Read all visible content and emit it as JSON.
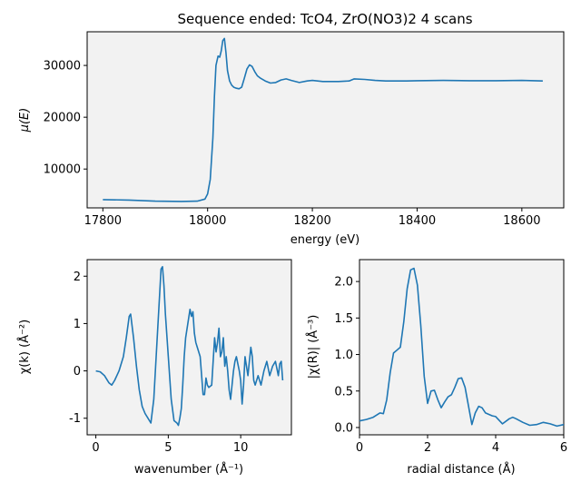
{
  "title": "Sequence ended: TcO4, ZrO(NO3)2  4 scans",
  "colors": {
    "series": "#1f77b4",
    "panel_bg": "#f2f2f2"
  },
  "chart_data": [
    {
      "id": "mu",
      "type": "line",
      "xlabel": "energy (eV)",
      "ylabel": "μ(E)",
      "xlim": [
        17770,
        18680
      ],
      "ylim": [
        2500,
        36500
      ],
      "xticks": [
        17800,
        18000,
        18200,
        18400,
        18600
      ],
      "yticks": [
        10000,
        20000,
        30000
      ],
      "grid": false,
      "series": [
        {
          "x": [
            17800,
            17850,
            17900,
            17950,
            17980,
            17995,
            18000,
            18005,
            18010,
            18013,
            18016,
            18020,
            18023,
            18026,
            18029,
            18032,
            18035,
            18038,
            18042,
            18046,
            18050,
            18055,
            18060,
            18065,
            18070,
            18075,
            18080,
            18085,
            18090,
            18095,
            18100,
            18110,
            18120,
            18130,
            18140,
            18150,
            18160,
            18175,
            18190,
            18200,
            18220,
            18250,
            18270,
            18280,
            18300,
            18320,
            18340,
            18360,
            18380,
            18400,
            18450,
            18500,
            18550,
            18600,
            18640
          ],
          "y": [
            4100,
            4000,
            3800,
            3750,
            3800,
            4200,
            5200,
            8000,
            16000,
            24000,
            30000,
            31800,
            31600,
            32800,
            34800,
            35200,
            32500,
            29000,
            27000,
            26200,
            25800,
            25600,
            25500,
            25800,
            27500,
            29300,
            30100,
            29800,
            28800,
            28000,
            27600,
            27000,
            26600,
            26700,
            27200,
            27400,
            27100,
            26700,
            27000,
            27100,
            26900,
            26900,
            27000,
            27400,
            27300,
            27100,
            27000,
            27000,
            27000,
            27050,
            27100,
            27050,
            27050,
            27100,
            27000
          ]
        }
      ]
    },
    {
      "id": "chik",
      "type": "line",
      "xlabel": "wavenumber (Å⁻¹)",
      "ylabel": "χ(k)  (Å⁻²)",
      "xlim": [
        -0.6,
        13.5
      ],
      "ylim": [
        -1.35,
        2.35
      ],
      "xticks": [
        0,
        5,
        10
      ],
      "yticks": [
        -1,
        0,
        1,
        2
      ],
      "grid": false,
      "series": [
        {
          "x": [
            0,
            0.3,
            0.6,
            0.9,
            1.1,
            1.3,
            1.6,
            1.9,
            2.1,
            2.3,
            2.4,
            2.6,
            2.8,
            3.0,
            3.2,
            3.4,
            3.6,
            3.8,
            4.0,
            4.2,
            4.4,
            4.5,
            4.6,
            4.7,
            4.8,
            5.0,
            5.2,
            5.4,
            5.6,
            5.7,
            5.8,
            5.9,
            6.0,
            6.1,
            6.2,
            6.4,
            6.5,
            6.6,
            6.7,
            6.8,
            6.9,
            7.0,
            7.2,
            7.4,
            7.5,
            7.6,
            7.7,
            7.8,
            8.0,
            8.1,
            8.2,
            8.3,
            8.4,
            8.5,
            8.6,
            8.7,
            8.8,
            8.9,
            9.0,
            9.1,
            9.2,
            9.3,
            9.4,
            9.5,
            9.6,
            9.7,
            9.8,
            9.9,
            10.0,
            10.1,
            10.2,
            10.3,
            10.4,
            10.5,
            10.6,
            10.7,
            10.8,
            10.9,
            11.0,
            11.2,
            11.4,
            11.6,
            11.8,
            12.0,
            12.2,
            12.4,
            12.6,
            12.7,
            12.8,
            12.9
          ],
          "y": [
            0,
            -0.02,
            -0.1,
            -0.25,
            -0.3,
            -0.2,
            0.0,
            0.3,
            0.7,
            1.15,
            1.2,
            0.7,
            0.1,
            -0.4,
            -0.75,
            -0.9,
            -1.0,
            -1.1,
            -0.6,
            0.5,
            1.6,
            2.15,
            2.2,
            1.8,
            1.2,
            0.3,
            -0.6,
            -1.05,
            -1.1,
            -1.15,
            -1.0,
            -0.8,
            -0.3,
            0.3,
            0.7,
            1.1,
            1.3,
            1.15,
            1.25,
            0.8,
            0.6,
            0.5,
            0.3,
            -0.5,
            -0.5,
            -0.15,
            -0.3,
            -0.35,
            -0.3,
            0.2,
            0.7,
            0.4,
            0.6,
            0.9,
            0.3,
            0.4,
            0.7,
            0.1,
            0.3,
            0.0,
            -0.4,
            -0.6,
            -0.3,
            0.0,
            0.2,
            0.3,
            0.15,
            0.0,
            -0.2,
            -0.7,
            -0.3,
            0.3,
            0.1,
            -0.1,
            0.2,
            0.5,
            0.3,
            -0.2,
            -0.3,
            -0.1,
            -0.3,
            0.0,
            0.2,
            -0.1,
            0.1,
            0.2,
            -0.1,
            0.15,
            0.2,
            -0.2
          ]
        }
      ]
    },
    {
      "id": "chir",
      "type": "line",
      "xlabel": "radial distance (Å)",
      "ylabel": "|χ(R)|  (Å⁻³)",
      "xlim": [
        0,
        6
      ],
      "ylim": [
        -0.1,
        2.3
      ],
      "xticks": [
        0,
        2,
        4,
        6
      ],
      "yticks": [
        0.0,
        0.5,
        1.0,
        1.5,
        2.0
      ],
      "grid": false,
      "series": [
        {
          "x": [
            0,
            0.2,
            0.4,
            0.6,
            0.7,
            0.8,
            0.9,
            1.0,
            1.1,
            1.2,
            1.3,
            1.4,
            1.5,
            1.6,
            1.7,
            1.8,
            1.9,
            2.0,
            2.1,
            2.2,
            2.3,
            2.4,
            2.5,
            2.6,
            2.7,
            2.8,
            2.9,
            3.0,
            3.1,
            3.2,
            3.3,
            3.4,
            3.5,
            3.6,
            3.7,
            3.8,
            3.9,
            4.0,
            4.2,
            4.4,
            4.5,
            4.6,
            4.8,
            5.0,
            5.2,
            5.4,
            5.6,
            5.8,
            6.0
          ],
          "y": [
            0.09,
            0.11,
            0.14,
            0.2,
            0.19,
            0.38,
            0.75,
            1.02,
            1.06,
            1.1,
            1.45,
            1.9,
            2.16,
            2.18,
            1.95,
            1.4,
            0.7,
            0.33,
            0.5,
            0.51,
            0.38,
            0.27,
            0.35,
            0.42,
            0.45,
            0.55,
            0.67,
            0.68,
            0.55,
            0.3,
            0.04,
            0.2,
            0.29,
            0.27,
            0.2,
            0.18,
            0.16,
            0.15,
            0.05,
            0.12,
            0.14,
            0.12,
            0.07,
            0.03,
            0.04,
            0.07,
            0.05,
            0.02,
            0.04
          ]
        }
      ]
    }
  ]
}
